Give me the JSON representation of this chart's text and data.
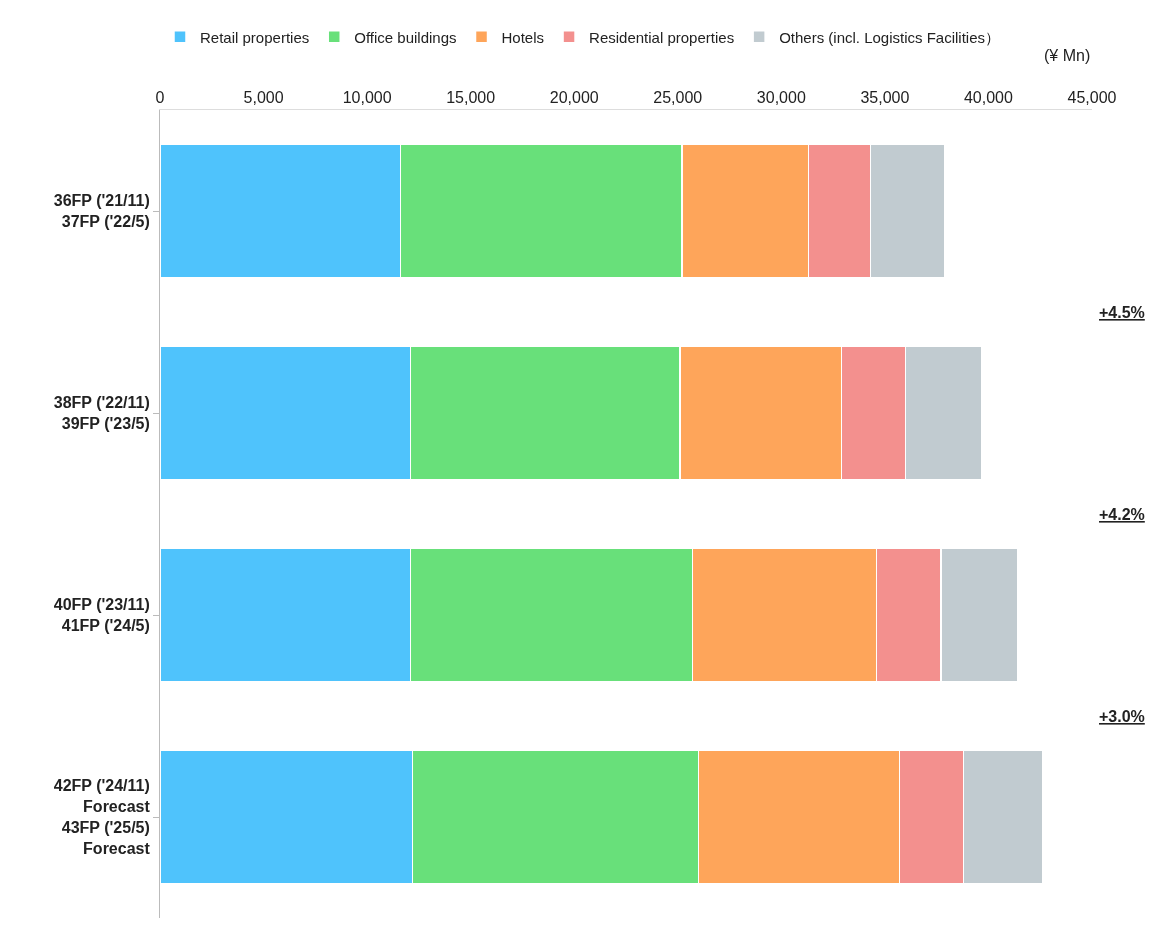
{
  "chart_data": {
    "type": "bar",
    "orientation": "horizontal",
    "stacked": true,
    "categories": [
      "36FP ('21/11)\n37FP ('22/5)",
      "38FP ('22/11)\n39FP ('23/5)",
      "40FP ('23/11)\n41FP ('24/5)",
      "42FP ('24/11)\nForecast\n43FP ('25/5)\nForecast"
    ],
    "series": [
      {
        "name": "Retail properties",
        "color": "#4fc3fc",
        "values": [
          11600,
          12100,
          12100,
          12200
        ]
      },
      {
        "name": "Office buildings",
        "color": "#68e07a",
        "values": [
          13600,
          13000,
          13600,
          13800
        ]
      },
      {
        "name": "Hotels",
        "color": "#fea55a",
        "values": [
          6100,
          7800,
          8900,
          9700
        ]
      },
      {
        "name": "Residential properties",
        "color": "#f3908e",
        "values": [
          3000,
          3100,
          3100,
          3100
        ]
      },
      {
        "name": "Others (incl. Logistics Facilities）",
        "color": "#c1cbd0",
        "values": [
          3600,
          3700,
          3700,
          3800
        ]
      }
    ],
    "xlim": [
      0,
      45000
    ],
    "xticks": [
      {
        "value": 0,
        "label": "0"
      },
      {
        "value": 5000,
        "label": "5,000"
      },
      {
        "value": 10000,
        "label": "10,000"
      },
      {
        "value": 15000,
        "label": "15,000"
      },
      {
        "value": 20000,
        "label": "20,000"
      },
      {
        "value": 25000,
        "label": "25,000"
      },
      {
        "value": 30000,
        "label": "30,000"
      },
      {
        "value": 35000,
        "label": "35,000"
      },
      {
        "value": 40000,
        "label": "40,000"
      },
      {
        "value": 45000,
        "label": "45,000"
      }
    ],
    "xlabel": "(¥ Mn)",
    "annotations": [
      "+4.5%",
      "+4.2%",
      "+3.0%"
    ],
    "legend": "top left"
  }
}
